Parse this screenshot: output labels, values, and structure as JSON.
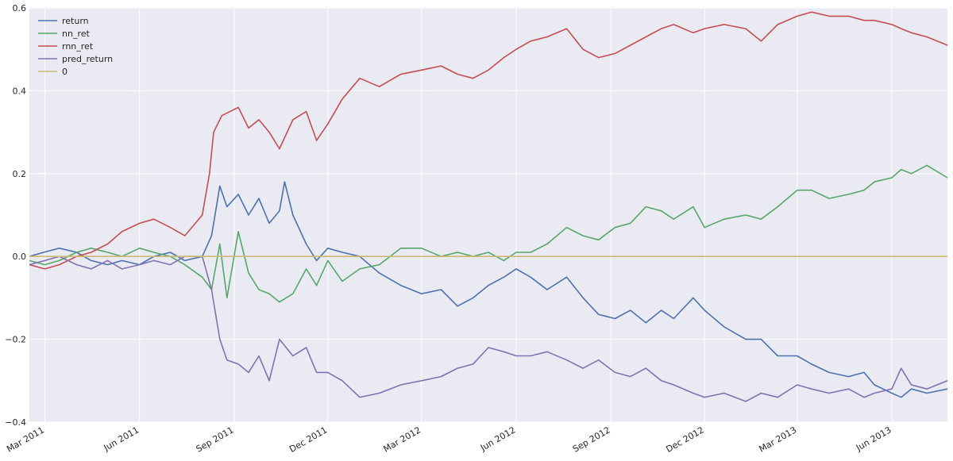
{
  "chart_data": {
    "type": "line",
    "title": "",
    "xlabel": "",
    "ylabel": "",
    "xlim": [
      "2011-02-14",
      "2013-07-25"
    ],
    "ylim": [
      -0.4,
      0.6
    ],
    "grid": true,
    "legend_position": "top-left",
    "colors": {
      "plot_background": "#EAEAF2",
      "grid": "#FFFFFF",
      "text": "#262626"
    },
    "x_ticks": [
      {
        "date": "2011-03-01",
        "label": "Mar 2011"
      },
      {
        "date": "2011-06-01",
        "label": "Jun 2011"
      },
      {
        "date": "2011-09-01",
        "label": "Sep 2011"
      },
      {
        "date": "2011-12-01",
        "label": "Dec 2011"
      },
      {
        "date": "2012-03-01",
        "label": "Mar 2012"
      },
      {
        "date": "2012-06-01",
        "label": "Jun 2012"
      },
      {
        "date": "2012-09-01",
        "label": "Sep 2012"
      },
      {
        "date": "2012-12-01",
        "label": "Dec 2012"
      },
      {
        "date": "2013-03-01",
        "label": "Mar 2013"
      },
      {
        "date": "2013-06-01",
        "label": "Jun 2013"
      }
    ],
    "y_ticks": [
      {
        "value": 0.6,
        "label": "0.6"
      },
      {
        "value": 0.4,
        "label": "0.4"
      },
      {
        "value": 0.2,
        "label": "0.2"
      },
      {
        "value": 0.0,
        "label": "0.0"
      },
      {
        "value": -0.2,
        "label": "−0.2"
      },
      {
        "value": -0.4,
        "label": "−0.4"
      }
    ],
    "series": [
      {
        "name": "return",
        "color": "#4C72B0",
        "points": [
          [
            "2011-02-14",
            0.0
          ],
          [
            "2011-02-28",
            0.01
          ],
          [
            "2011-03-15",
            0.02
          ],
          [
            "2011-04-01",
            0.01
          ],
          [
            "2011-04-15",
            -0.01
          ],
          [
            "2011-05-01",
            -0.02
          ],
          [
            "2011-05-15",
            -0.01
          ],
          [
            "2011-06-01",
            -0.02
          ],
          [
            "2011-06-15",
            0.0
          ],
          [
            "2011-07-01",
            0.01
          ],
          [
            "2011-07-15",
            -0.01
          ],
          [
            "2011-08-01",
            0.0
          ],
          [
            "2011-08-10",
            0.05
          ],
          [
            "2011-08-18",
            0.17
          ],
          [
            "2011-08-25",
            0.12
          ],
          [
            "2011-09-05",
            0.15
          ],
          [
            "2011-09-15",
            0.1
          ],
          [
            "2011-09-25",
            0.14
          ],
          [
            "2011-10-05",
            0.08
          ],
          [
            "2011-10-15",
            0.11
          ],
          [
            "2011-10-20",
            0.18
          ],
          [
            "2011-10-28",
            0.1
          ],
          [
            "2011-11-10",
            0.03
          ],
          [
            "2011-11-20",
            -0.01
          ],
          [
            "2011-12-01",
            0.02
          ],
          [
            "2011-12-15",
            0.01
          ],
          [
            "2012-01-01",
            0.0
          ],
          [
            "2012-01-20",
            -0.04
          ],
          [
            "2012-02-10",
            -0.07
          ],
          [
            "2012-03-01",
            -0.09
          ],
          [
            "2012-03-20",
            -0.08
          ],
          [
            "2012-04-05",
            -0.12
          ],
          [
            "2012-04-20",
            -0.1
          ],
          [
            "2012-05-05",
            -0.07
          ],
          [
            "2012-05-20",
            -0.05
          ],
          [
            "2012-06-01",
            -0.03
          ],
          [
            "2012-06-15",
            -0.05
          ],
          [
            "2012-07-01",
            -0.08
          ],
          [
            "2012-07-20",
            -0.05
          ],
          [
            "2012-08-05",
            -0.1
          ],
          [
            "2012-08-20",
            -0.14
          ],
          [
            "2012-09-05",
            -0.15
          ],
          [
            "2012-09-20",
            -0.13
          ],
          [
            "2012-10-05",
            -0.16
          ],
          [
            "2012-10-20",
            -0.13
          ],
          [
            "2012-11-01",
            -0.15
          ],
          [
            "2012-11-20",
            -0.1
          ],
          [
            "2012-12-01",
            -0.13
          ],
          [
            "2012-12-20",
            -0.17
          ],
          [
            "2013-01-10",
            -0.2
          ],
          [
            "2013-01-25",
            -0.2
          ],
          [
            "2013-02-10",
            -0.24
          ],
          [
            "2013-03-01",
            -0.24
          ],
          [
            "2013-03-15",
            -0.26
          ],
          [
            "2013-04-01",
            -0.28
          ],
          [
            "2013-04-20",
            -0.29
          ],
          [
            "2013-05-05",
            -0.28
          ],
          [
            "2013-05-15",
            -0.31
          ],
          [
            "2013-06-01",
            -0.33
          ],
          [
            "2013-06-10",
            -0.34
          ],
          [
            "2013-06-20",
            -0.32
          ],
          [
            "2013-07-05",
            -0.33
          ],
          [
            "2013-07-25",
            -0.32
          ]
        ]
      },
      {
        "name": "nn_ret",
        "color": "#55A868",
        "points": [
          [
            "2011-02-14",
            -0.01
          ],
          [
            "2011-03-01",
            -0.02
          ],
          [
            "2011-03-15",
            -0.01
          ],
          [
            "2011-04-01",
            0.01
          ],
          [
            "2011-04-15",
            0.02
          ],
          [
            "2011-05-01",
            0.01
          ],
          [
            "2011-05-15",
            0.0
          ],
          [
            "2011-06-01",
            0.02
          ],
          [
            "2011-06-15",
            0.01
          ],
          [
            "2011-07-01",
            0.0
          ],
          [
            "2011-07-15",
            -0.02
          ],
          [
            "2011-08-01",
            -0.05
          ],
          [
            "2011-08-10",
            -0.08
          ],
          [
            "2011-08-18",
            0.03
          ],
          [
            "2011-08-25",
            -0.1
          ],
          [
            "2011-09-05",
            0.06
          ],
          [
            "2011-09-15",
            -0.04
          ],
          [
            "2011-09-25",
            -0.08
          ],
          [
            "2011-10-05",
            -0.09
          ],
          [
            "2011-10-15",
            -0.11
          ],
          [
            "2011-10-28",
            -0.09
          ],
          [
            "2011-11-10",
            -0.03
          ],
          [
            "2011-11-20",
            -0.07
          ],
          [
            "2011-12-01",
            -0.01
          ],
          [
            "2011-12-15",
            -0.06
          ],
          [
            "2012-01-01",
            -0.03
          ],
          [
            "2012-01-20",
            -0.02
          ],
          [
            "2012-02-10",
            0.02
          ],
          [
            "2012-03-01",
            0.02
          ],
          [
            "2012-03-20",
            0.0
          ],
          [
            "2012-04-05",
            0.01
          ],
          [
            "2012-04-20",
            0.0
          ],
          [
            "2012-05-05",
            0.01
          ],
          [
            "2012-05-20",
            -0.01
          ],
          [
            "2012-06-01",
            0.01
          ],
          [
            "2012-06-15",
            0.01
          ],
          [
            "2012-07-01",
            0.03
          ],
          [
            "2012-07-20",
            0.07
          ],
          [
            "2012-08-05",
            0.05
          ],
          [
            "2012-08-20",
            0.04
          ],
          [
            "2012-09-05",
            0.07
          ],
          [
            "2012-09-20",
            0.08
          ],
          [
            "2012-10-05",
            0.12
          ],
          [
            "2012-10-20",
            0.11
          ],
          [
            "2012-11-01",
            0.09
          ],
          [
            "2012-11-20",
            0.12
          ],
          [
            "2012-12-01",
            0.07
          ],
          [
            "2012-12-20",
            0.09
          ],
          [
            "2013-01-10",
            0.1
          ],
          [
            "2013-01-25",
            0.09
          ],
          [
            "2013-02-10",
            0.12
          ],
          [
            "2013-03-01",
            0.16
          ],
          [
            "2013-03-15",
            0.16
          ],
          [
            "2013-04-01",
            0.14
          ],
          [
            "2013-04-20",
            0.15
          ],
          [
            "2013-05-05",
            0.16
          ],
          [
            "2013-05-15",
            0.18
          ],
          [
            "2013-06-01",
            0.19
          ],
          [
            "2013-06-10",
            0.21
          ],
          [
            "2013-06-20",
            0.2
          ],
          [
            "2013-07-05",
            0.22
          ],
          [
            "2013-07-25",
            0.19
          ]
        ]
      },
      {
        "name": "rnn_ret",
        "color": "#C44E52",
        "points": [
          [
            "2011-02-14",
            -0.02
          ],
          [
            "2011-03-01",
            -0.03
          ],
          [
            "2011-03-15",
            -0.02
          ],
          [
            "2011-04-01",
            0.0
          ],
          [
            "2011-04-15",
            0.01
          ],
          [
            "2011-05-01",
            0.03
          ],
          [
            "2011-05-15",
            0.06
          ],
          [
            "2011-06-01",
            0.08
          ],
          [
            "2011-06-15",
            0.09
          ],
          [
            "2011-07-01",
            0.07
          ],
          [
            "2011-07-15",
            0.05
          ],
          [
            "2011-08-01",
            0.1
          ],
          [
            "2011-08-08",
            0.2
          ],
          [
            "2011-08-12",
            0.3
          ],
          [
            "2011-08-20",
            0.34
          ],
          [
            "2011-09-05",
            0.36
          ],
          [
            "2011-09-15",
            0.31
          ],
          [
            "2011-09-25",
            0.33
          ],
          [
            "2011-10-05",
            0.3
          ],
          [
            "2011-10-15",
            0.26
          ],
          [
            "2011-10-28",
            0.33
          ],
          [
            "2011-11-10",
            0.35
          ],
          [
            "2011-11-20",
            0.28
          ],
          [
            "2011-12-01",
            0.32
          ],
          [
            "2011-12-15",
            0.38
          ],
          [
            "2012-01-01",
            0.43
          ],
          [
            "2012-01-20",
            0.41
          ],
          [
            "2012-02-10",
            0.44
          ],
          [
            "2012-03-01",
            0.45
          ],
          [
            "2012-03-20",
            0.46
          ],
          [
            "2012-04-05",
            0.44
          ],
          [
            "2012-04-20",
            0.43
          ],
          [
            "2012-05-05",
            0.45
          ],
          [
            "2012-05-20",
            0.48
          ],
          [
            "2012-06-01",
            0.5
          ],
          [
            "2012-06-15",
            0.52
          ],
          [
            "2012-07-01",
            0.53
          ],
          [
            "2012-07-20",
            0.55
          ],
          [
            "2012-08-05",
            0.5
          ],
          [
            "2012-08-20",
            0.48
          ],
          [
            "2012-09-05",
            0.49
          ],
          [
            "2012-09-20",
            0.51
          ],
          [
            "2012-10-05",
            0.53
          ],
          [
            "2012-10-20",
            0.55
          ],
          [
            "2012-11-01",
            0.56
          ],
          [
            "2012-11-20",
            0.54
          ],
          [
            "2012-12-01",
            0.55
          ],
          [
            "2012-12-20",
            0.56
          ],
          [
            "2013-01-10",
            0.55
          ],
          [
            "2013-01-25",
            0.52
          ],
          [
            "2013-02-10",
            0.56
          ],
          [
            "2013-03-01",
            0.58
          ],
          [
            "2013-03-15",
            0.59
          ],
          [
            "2013-04-01",
            0.58
          ],
          [
            "2013-04-20",
            0.58
          ],
          [
            "2013-05-05",
            0.57
          ],
          [
            "2013-05-15",
            0.57
          ],
          [
            "2013-06-01",
            0.56
          ],
          [
            "2013-06-10",
            0.55
          ],
          [
            "2013-06-20",
            0.54
          ],
          [
            "2013-07-05",
            0.53
          ],
          [
            "2013-07-25",
            0.51
          ]
        ]
      },
      {
        "name": "pred_return",
        "color": "#8172B2",
        "points": [
          [
            "2011-02-14",
            -0.02
          ],
          [
            "2011-03-01",
            -0.01
          ],
          [
            "2011-03-15",
            0.0
          ],
          [
            "2011-04-01",
            -0.02
          ],
          [
            "2011-04-15",
            -0.03
          ],
          [
            "2011-05-01",
            -0.01
          ],
          [
            "2011-05-15",
            -0.03
          ],
          [
            "2011-06-01",
            -0.02
          ],
          [
            "2011-06-15",
            -0.01
          ],
          [
            "2011-07-01",
            -0.02
          ],
          [
            "2011-07-15",
            0.0
          ],
          [
            "2011-08-01",
            0.0
          ],
          [
            "2011-08-10",
            -0.08
          ],
          [
            "2011-08-18",
            -0.2
          ],
          [
            "2011-08-25",
            -0.25
          ],
          [
            "2011-09-05",
            -0.26
          ],
          [
            "2011-09-15",
            -0.28
          ],
          [
            "2011-09-25",
            -0.24
          ],
          [
            "2011-10-05",
            -0.3
          ],
          [
            "2011-10-15",
            -0.2
          ],
          [
            "2011-10-28",
            -0.24
          ],
          [
            "2011-11-10",
            -0.22
          ],
          [
            "2011-11-20",
            -0.28
          ],
          [
            "2011-12-01",
            -0.28
          ],
          [
            "2011-12-15",
            -0.3
          ],
          [
            "2012-01-01",
            -0.34
          ],
          [
            "2012-01-20",
            -0.33
          ],
          [
            "2012-02-10",
            -0.31
          ],
          [
            "2012-03-01",
            -0.3
          ],
          [
            "2012-03-20",
            -0.29
          ],
          [
            "2012-04-05",
            -0.27
          ],
          [
            "2012-04-20",
            -0.26
          ],
          [
            "2012-05-05",
            -0.22
          ],
          [
            "2012-05-20",
            -0.23
          ],
          [
            "2012-06-01",
            -0.24
          ],
          [
            "2012-06-15",
            -0.24
          ],
          [
            "2012-07-01",
            -0.23
          ],
          [
            "2012-07-20",
            -0.25
          ],
          [
            "2012-08-05",
            -0.27
          ],
          [
            "2012-08-20",
            -0.25
          ],
          [
            "2012-09-05",
            -0.28
          ],
          [
            "2012-09-20",
            -0.29
          ],
          [
            "2012-10-05",
            -0.27
          ],
          [
            "2012-10-20",
            -0.3
          ],
          [
            "2012-11-01",
            -0.31
          ],
          [
            "2012-11-20",
            -0.33
          ],
          [
            "2012-12-01",
            -0.34
          ],
          [
            "2012-12-20",
            -0.33
          ],
          [
            "2013-01-10",
            -0.35
          ],
          [
            "2013-01-25",
            -0.33
          ],
          [
            "2013-02-10",
            -0.34
          ],
          [
            "2013-03-01",
            -0.31
          ],
          [
            "2013-03-15",
            -0.32
          ],
          [
            "2013-04-01",
            -0.33
          ],
          [
            "2013-04-20",
            -0.32
          ],
          [
            "2013-05-05",
            -0.34
          ],
          [
            "2013-05-15",
            -0.33
          ],
          [
            "2013-06-01",
            -0.32
          ],
          [
            "2013-06-10",
            -0.27
          ],
          [
            "2013-06-20",
            -0.31
          ],
          [
            "2013-07-05",
            -0.32
          ],
          [
            "2013-07-25",
            -0.3
          ]
        ]
      },
      {
        "name": "0",
        "color": "#CCB974",
        "points": [
          [
            "2011-02-14",
            0.0
          ],
          [
            "2013-07-25",
            0.0
          ]
        ]
      }
    ]
  }
}
